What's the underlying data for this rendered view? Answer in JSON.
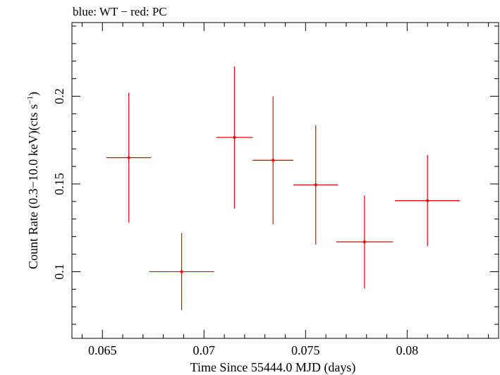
{
  "chart_data": {
    "type": "scatter",
    "title": "blue: WT − red: PC",
    "xlabel": "Time Since 55444.0 MJD (days)",
    "ylabel_main": "Count Rate (0.3−10.0 keV)(cts s",
    "ylabel_sup": "−1",
    "ylabel_close": ")",
    "xlim": [
      0.0635,
      0.0845
    ],
    "ylim": [
      0.062,
      0.242
    ],
    "xticks": [
      0.065,
      0.07,
      0.075,
      0.08
    ],
    "xtick_labels": [
      "0.065",
      "0.07",
      "0.075",
      "0.08"
    ],
    "yticks": [
      0.1,
      0.15,
      0.2
    ],
    "ytick_labels": [
      "0.1",
      "0.15",
      "0.2"
    ],
    "grid": false,
    "series": [
      {
        "color": "#ee0000",
        "points": [
          {
            "x": 0.0663,
            "y": 0.165,
            "xerr": 0.0011,
            "yerr": 0.037
          },
          {
            "x": 0.0689,
            "y": 0.1,
            "xerr": 0.0016,
            "yerr": 0.022
          },
          {
            "x": 0.0715,
            "y": 0.1765,
            "xerr": 0.0009,
            "yerr": 0.0405
          },
          {
            "x": 0.0734,
            "y": 0.1635,
            "xerr": 0.001,
            "yerr": 0.0365
          },
          {
            "x": 0.0755,
            "y": 0.1495,
            "xerr": 0.0011,
            "yerr": 0.034
          },
          {
            "x": 0.0779,
            "y": 0.117,
            "xerr": 0.0014,
            "yerr": 0.0265
          },
          {
            "x": 0.081,
            "y": 0.1405,
            "xerr": 0.0016,
            "yerr": 0.026
          }
        ]
      }
    ]
  }
}
